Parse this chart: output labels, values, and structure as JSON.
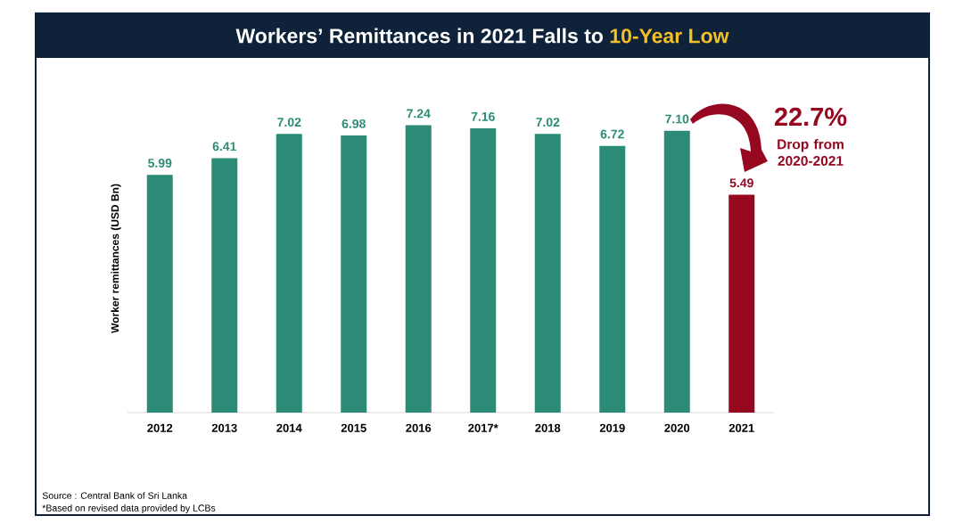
{
  "chart_data": {
    "type": "bar",
    "title": "Workers’ Remittances in 2021 Falls to **10-Year Low**",
    "ylabel": "Worker remittances (USD Bn)",
    "categories": [
      "2012",
      "2013",
      "2014",
      "2015",
      "2016",
      "2017*",
      "2018",
      "2019",
      "2020",
      "2021"
    ],
    "values": [
      5.99,
      6.41,
      7.02,
      6.98,
      7.24,
      7.16,
      7.02,
      6.72,
      7.1,
      5.49
    ],
    "colors": [
      "#2b8b76",
      "#2b8b76",
      "#2b8b76",
      "#2b8b76",
      "#2b8b76",
      "#2b8b76",
      "#2b8b76",
      "#2b8b76",
      "#2b8b76",
      "#960720"
    ],
    "value_labels": [
      "5.99",
      "6.41",
      "7.02",
      "6.98",
      "7.24",
      "7.16",
      "7.02",
      "6.72",
      "7.10",
      "5.49"
    ],
    "annotations": [
      "22.7%",
      "Drop from 2020-2021",
      "Source : Central Bank of Sri Lanka",
      "*Based on revised data provided by LCBs"
    ]
  }
}
